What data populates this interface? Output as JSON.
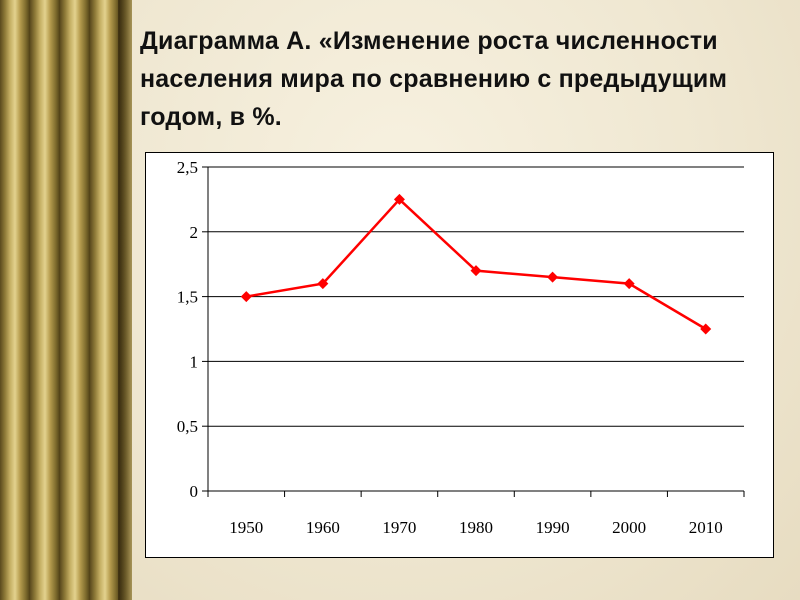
{
  "title": "Диаграмма А. «Изменение роста численности населения мира по сравнению с предыдущим годом, в %.",
  "colors": {
    "series": "#ff0000",
    "grid": "#000000",
    "plot_background": "#ffffff"
  },
  "chart_data": {
    "type": "line",
    "title": "",
    "xlabel": "",
    "ylabel": "",
    "categories": [
      "1950",
      "1960",
      "1970",
      "1980",
      "1990",
      "2000",
      "2010"
    ],
    "series": [
      {
        "values": [
          1.5,
          1.6,
          2.25,
          1.7,
          1.65,
          1.6,
          1.25
        ],
        "color": "#ff0000",
        "marker": "diamond"
      }
    ],
    "ylim": [
      0,
      2.5
    ],
    "yticks": [
      0,
      0.5,
      1,
      1.5,
      2,
      2.5
    ],
    "ytick_labels": [
      "0",
      "0,5",
      "1",
      "1,5",
      "2",
      "2,5"
    ],
    "grid": "horizontal",
    "legend": "none"
  }
}
